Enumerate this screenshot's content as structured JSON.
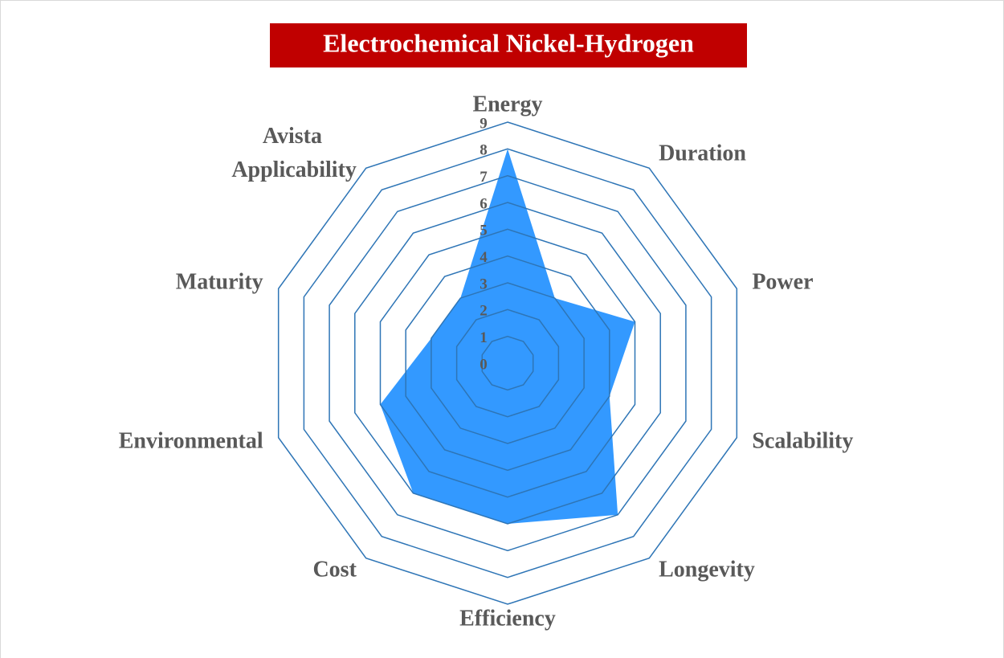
{
  "chart_data": {
    "type": "radar",
    "title": "Electrochemical Nickel-Hydrogen",
    "categories": [
      "Energy",
      "Duration",
      "Power",
      "Scalability",
      "Longevity",
      "Efficiency",
      "Cost",
      "Environmental",
      "Maturity",
      "Avista Applicability"
    ],
    "values": [
      8,
      3,
      5,
      4,
      7,
      6,
      6,
      5,
      3,
      3
    ],
    "color": "#3399ff",
    "grid_color": "#2e75b6",
    "ylim": [
      0,
      9
    ],
    "yticks": [
      0,
      1,
      2,
      3,
      4,
      5,
      6,
      7,
      8,
      9
    ],
    "grid": true
  }
}
